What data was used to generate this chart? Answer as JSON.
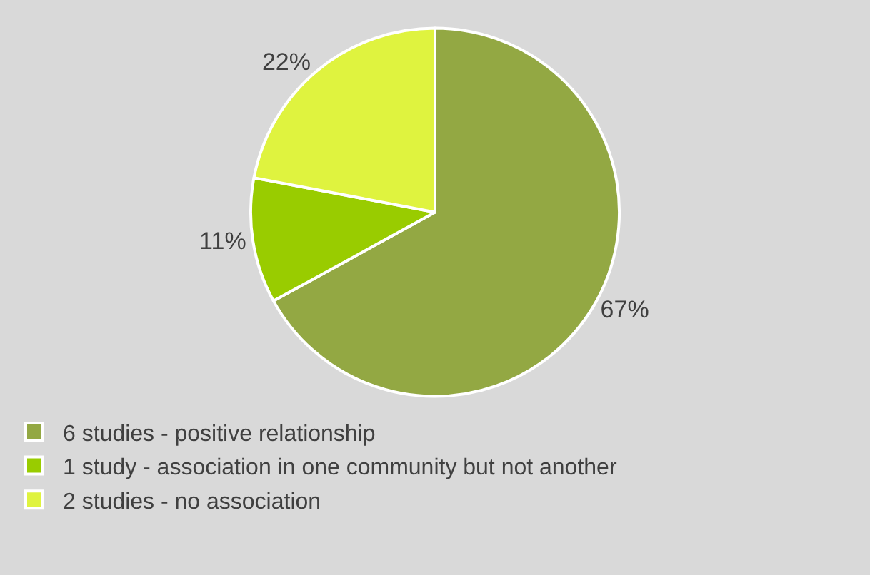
{
  "chart_data": {
    "type": "pie",
    "categories": [
      "6 studies - positive relationship",
      "1 study - association in one community but not another",
      "2 studies - no association"
    ],
    "values": [
      67,
      11,
      22
    ],
    "value_labels": [
      "67%",
      "11%",
      "22%"
    ],
    "colors": [
      "#93a843",
      "#99cc00",
      "#dff33f"
    ],
    "legend": "bottom left"
  }
}
